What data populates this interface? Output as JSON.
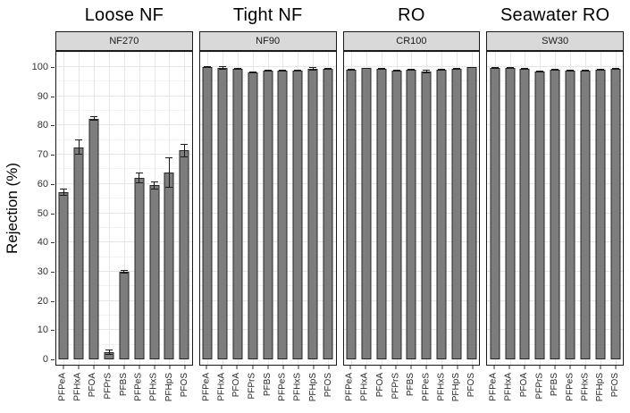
{
  "figure": {
    "background": "#ffffff",
    "bar_fill": "#7d7d7d",
    "bar_border": "#262626",
    "strip_background": "#d9d9d9",
    "panel_border": "#1a1a1a",
    "grid_major_color": "#e6e6e6",
    "grid_minor_color": "#f2f2f2",
    "error_bar_color": "#1a1a1a"
  },
  "chart_data": {
    "type": "bar",
    "title": "",
    "ylabel": "Rejection (%)",
    "xlabel": "",
    "ylim": [
      0,
      105
    ],
    "yticks": [
      0,
      10,
      20,
      30,
      40,
      50,
      60,
      70,
      80,
      90,
      100
    ],
    "grid": true,
    "legend": "none",
    "error_bars": true,
    "categories": [
      "PFPeA",
      "PFHxA",
      "PFOA",
      "PFPrS",
      "PFBS",
      "PFPeS",
      "PFHxS",
      "PFHpS",
      "PFOS"
    ],
    "panels": [
      {
        "title": "Loose NF",
        "strip": "NF270",
        "values": [
          57.2,
          72.6,
          82.4,
          2.5,
          30.0,
          62.1,
          59.5,
          64.0,
          71.5
        ],
        "errors": [
          1.2,
          2.6,
          0.8,
          0.9,
          0.5,
          1.9,
          1.5,
          5.2,
          2.3
        ]
      },
      {
        "title": "Tight NF",
        "strip": "NF90",
        "values": [
          100.0,
          99.7,
          99.4,
          98.2,
          98.8,
          98.8,
          98.9,
          99.4,
          99.4
        ],
        "errors": [
          0.2,
          0.6,
          0.3,
          0.3,
          0.2,
          0.2,
          0.2,
          0.5,
          0.2
        ]
      },
      {
        "title": "RO",
        "strip": "CR100",
        "values": [
          99.1,
          99.6,
          99.4,
          98.8,
          99.0,
          98.5,
          99.1,
          99.4,
          99.9
        ],
        "errors": [
          0.2,
          0.2,
          0.4,
          0.2,
          0.3,
          0.5,
          0.2,
          0.2,
          0.2
        ]
      },
      {
        "title": "Seawater RO",
        "strip": "SW30",
        "values": [
          99.7,
          99.7,
          99.4,
          98.5,
          99.1,
          98.8,
          98.8,
          99.1,
          99.4
        ],
        "errors": [
          0.2,
          0.2,
          0.2,
          0.2,
          0.2,
          0.2,
          0.2,
          0.2,
          0.2
        ]
      }
    ]
  }
}
